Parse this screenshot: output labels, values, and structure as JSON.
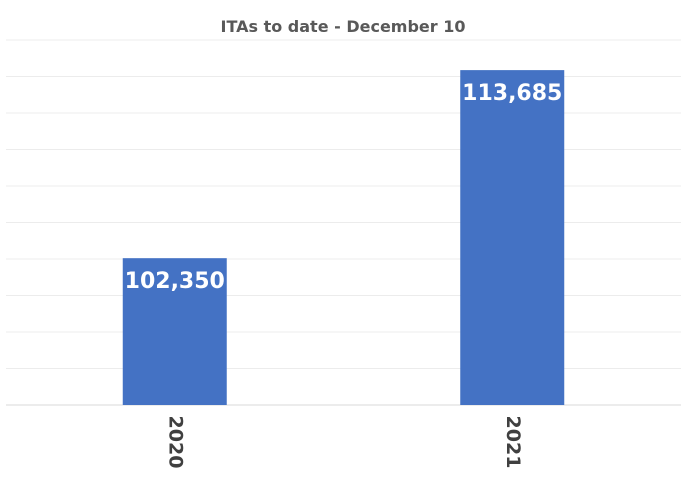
{
  "chart_data": {
    "type": "bar",
    "title": "ITAs to date - December 10",
    "categories": [
      "2020",
      "2021"
    ],
    "values": [
      102350,
      113685
    ],
    "data_labels": [
      "102,350",
      "113,685"
    ],
    "xlabel": "",
    "ylabel": "",
    "ylim": [
      93500,
      115500
    ],
    "grid": true,
    "legend": "none",
    "bar_color": "#4472C4"
  }
}
